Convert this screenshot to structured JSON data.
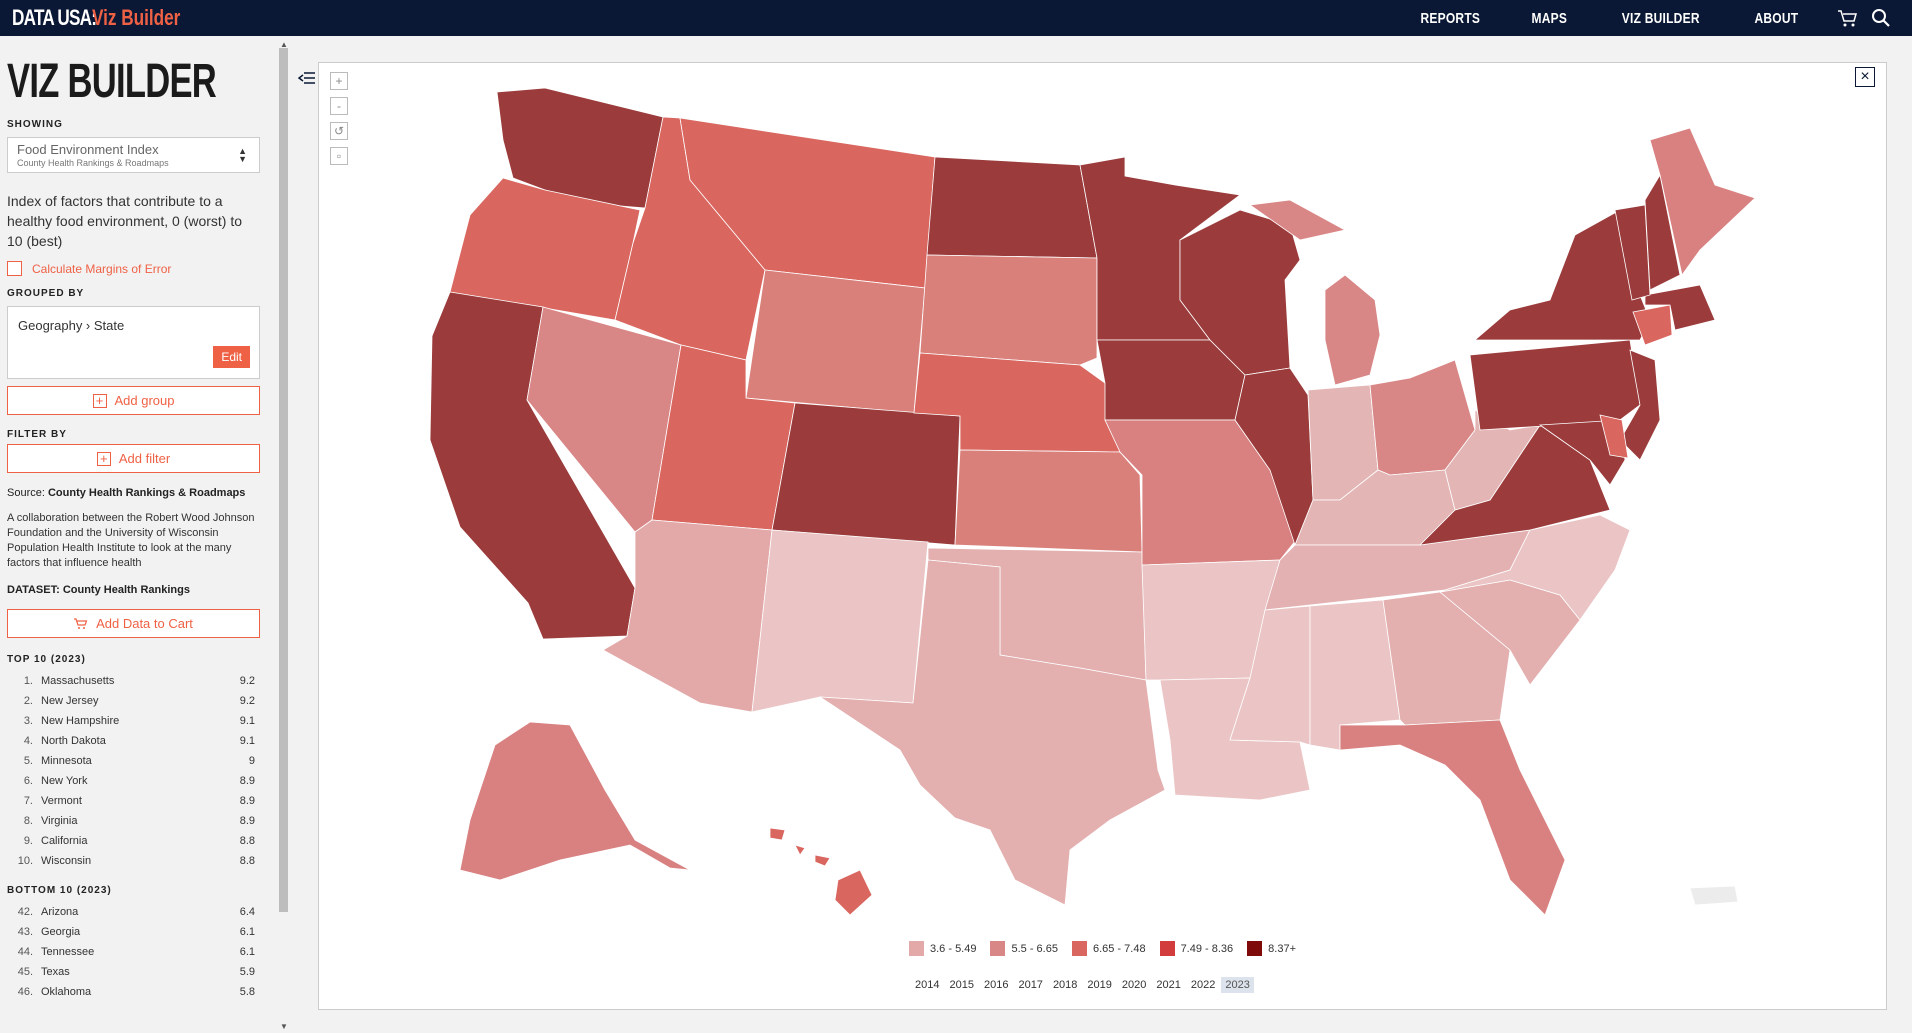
{
  "brand": {
    "name": "DATA USA:",
    "product": "Viz Builder"
  },
  "nav": {
    "items": [
      "REPORTS",
      "MAPS",
      "VIZ BUILDER",
      "ABOUT"
    ]
  },
  "sidebar": {
    "title": "VIZ BUILDER",
    "showing_label": "SHOWING",
    "measure": {
      "name": "Food Environment Index",
      "source": "County Health Rankings & Roadmaps"
    },
    "description": "Index of factors that contribute to a healthy food environment, 0 (worst) to 10 (best)",
    "moe_label": "Calculate Margins of Error",
    "grouped_by_label": "GROUPED BY",
    "group_value": "Geography › State",
    "edit_label": "Edit",
    "add_group_label": "Add group",
    "filter_by_label": "FILTER BY",
    "add_filter_label": "Add filter",
    "source_prefix": "Source:",
    "source_name": "County Health Rankings & Roadmaps",
    "collab_text": "A collaboration between the Robert Wood Johnson Foundation and the University of Wisconsin Population Health Institute to look at the many factors that influence health",
    "dataset_prefix": "DATASET:",
    "dataset_name": "County Health Rankings",
    "add_cart_label": "Add Data to Cart",
    "top_heading": "TOP 10 (2023)",
    "top": [
      {
        "rank": "1.",
        "name": "Massachusetts",
        "value": "9.2"
      },
      {
        "rank": "2.",
        "name": "New Jersey",
        "value": "9.2"
      },
      {
        "rank": "3.",
        "name": "New Hampshire",
        "value": "9.1"
      },
      {
        "rank": "4.",
        "name": "North Dakota",
        "value": "9.1"
      },
      {
        "rank": "5.",
        "name": "Minnesota",
        "value": "9"
      },
      {
        "rank": "6.",
        "name": "New York",
        "value": "8.9"
      },
      {
        "rank": "7.",
        "name": "Vermont",
        "value": "8.9"
      },
      {
        "rank": "8.",
        "name": "Virginia",
        "value": "8.9"
      },
      {
        "rank": "9.",
        "name": "California",
        "value": "8.8"
      },
      {
        "rank": "10.",
        "name": "Wisconsin",
        "value": "8.8"
      }
    ],
    "bottom_heading": "BOTTOM 10 (2023)",
    "bottom": [
      {
        "rank": "42.",
        "name": "Arizona",
        "value": "6.4"
      },
      {
        "rank": "43.",
        "name": "Georgia",
        "value": "6.1"
      },
      {
        "rank": "44.",
        "name": "Tennessee",
        "value": "6.1"
      },
      {
        "rank": "45.",
        "name": "Texas",
        "value": "5.9"
      },
      {
        "rank": "46.",
        "name": "Oklahoma",
        "value": "5.8"
      }
    ]
  },
  "map": {
    "zoom_in": "+",
    "zoom_out": "-",
    "close": "×",
    "legend": [
      {
        "label": "3.6 - 5.49",
        "color": "#e3a9a9"
      },
      {
        "label": "5.5 - 6.65",
        "color": "#d98686"
      },
      {
        "label": "6.65 - 7.48",
        "color": "#d9665f"
      },
      {
        "label": "7.49 - 8.36",
        "color": "#d23c3c"
      },
      {
        "label": "8.37+",
        "color": "#7f0a0a"
      }
    ],
    "years": [
      "2014",
      "2015",
      "2016",
      "2017",
      "2018",
      "2019",
      "2020",
      "2021",
      "2022",
      "2023"
    ],
    "active_year": "2023"
  }
}
